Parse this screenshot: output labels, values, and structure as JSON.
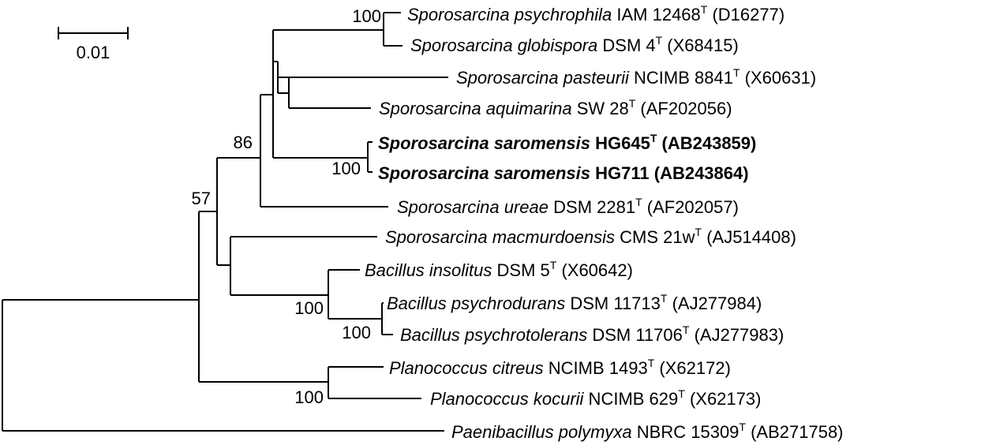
{
  "scale_bar": {
    "label": "0.01"
  },
  "bootstrap": [
    "100",
    "86",
    "57",
    "100",
    "100",
    "100",
    "100"
  ],
  "taxa": [
    {
      "genus": "Sporosarcina",
      "species": "psychrophila",
      "strain": "IAM 12468",
      "type": true,
      "acc": "(D16277)",
      "bold": false
    },
    {
      "genus": "Sporosarcina",
      "species": "globispora",
      "strain": "DSM 4",
      "type": true,
      "acc": "(X68415)",
      "bold": false
    },
    {
      "genus": "Sporosarcina",
      "species": "pasteurii",
      "strain": "NCIMB 8841",
      "type": true,
      "acc": "(X60631)",
      "bold": false
    },
    {
      "genus": "Sporosarcina",
      "species": "aquimarina",
      "strain": "SW 28",
      "type": true,
      "acc": "(AF202056)",
      "bold": false
    },
    {
      "genus": "Sporosarcina",
      "species": "saromensis",
      "strain": "HG645",
      "type": true,
      "acc": "(AB243859)",
      "bold": true
    },
    {
      "genus": "Sporosarcina",
      "species": "saromensis",
      "strain": "HG711",
      "type": false,
      "acc": "(AB243864)",
      "bold": true
    },
    {
      "genus": "Sporosarcina",
      "species": "ureae",
      "strain": "DSM 2281",
      "type": true,
      "acc": "(AF202057)",
      "bold": false
    },
    {
      "genus": "Sporosarcina",
      "species": "macmurdoensis",
      "strain": "CMS 21w",
      "type": true,
      "acc": "(AJ514408)",
      "bold": false
    },
    {
      "genus": "Bacillus",
      "species": "insolitus",
      "strain": "DSM 5",
      "type": true,
      "acc": "(X60642)",
      "bold": false
    },
    {
      "genus": "Bacillus",
      "species": "psychrodurans",
      "strain": "DSM 11713",
      "type": true,
      "acc": "(AJ277984)",
      "bold": false
    },
    {
      "genus": "Bacillus",
      "species": "psychrotolerans",
      "strain": "DSM 11706",
      "type": true,
      "acc": "(AJ277983)",
      "bold": false
    },
    {
      "genus": "Planococcus",
      "species": "citreus",
      "strain": "NCIMB 1493",
      "type": true,
      "acc": "(X62172)",
      "bold": false
    },
    {
      "genus": "Planococcus",
      "species": "kocurii",
      "strain": "NCIMB 629",
      "type": true,
      "acc": "(X62173)",
      "bold": false
    },
    {
      "genus": "Paenibacillus",
      "species": "polymyxa",
      "strain": "NBRC 15309",
      "type": true,
      "acc": "(AB271758)",
      "bold": false
    }
  ],
  "type_mark": "T"
}
